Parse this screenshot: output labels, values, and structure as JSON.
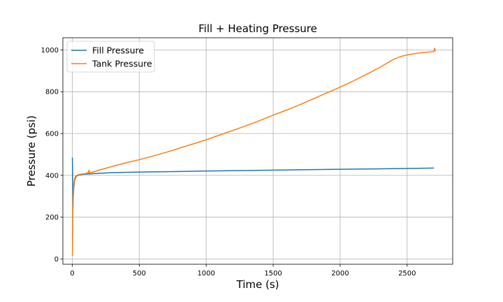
{
  "chart_data": {
    "type": "line",
    "title": "Fill + Heating Pressure",
    "xlabel": "Time (s)",
    "ylabel": "Pressure (psi)",
    "xlim": [
      -70,
      2840
    ],
    "ylim": [
      -25,
      1058
    ],
    "xticks": [
      0,
      500,
      1000,
      1500,
      2000,
      2500
    ],
    "yticks": [
      0,
      200,
      400,
      600,
      800,
      1000
    ],
    "grid": true,
    "legend_position": "top-left",
    "series": [
      {
        "name": "Fill Pressure",
        "color": "#1f77b4",
        "points": [
          [
            1,
            485
          ],
          [
            3,
            380
          ],
          [
            5,
            240
          ],
          [
            8,
            300
          ],
          [
            12,
            345
          ],
          [
            18,
            375
          ],
          [
            25,
            390
          ],
          [
            35,
            398
          ],
          [
            50,
            402
          ],
          [
            70,
            404
          ],
          [
            100,
            406
          ],
          [
            150,
            408
          ],
          [
            200,
            410
          ],
          [
            300,
            413
          ],
          [
            500,
            416
          ],
          [
            750,
            418
          ],
          [
            1000,
            421
          ],
          [
            1250,
            423
          ],
          [
            1500,
            425
          ],
          [
            1750,
            427
          ],
          [
            2000,
            429
          ],
          [
            2250,
            431
          ],
          [
            2500,
            433
          ],
          [
            2700,
            435
          ]
        ]
      },
      {
        "name": "Tank Pressure",
        "color": "#ff7f0e",
        "points": [
          [
            1,
            15
          ],
          [
            3,
            100
          ],
          [
            5,
            250
          ],
          [
            8,
            320
          ],
          [
            12,
            360
          ],
          [
            18,
            385
          ],
          [
            25,
            395
          ],
          [
            35,
            400
          ],
          [
            50,
            404
          ],
          [
            70,
            406
          ],
          [
            100,
            409
          ],
          [
            120,
            412
          ],
          [
            125,
            425
          ],
          [
            130,
            412
          ],
          [
            150,
            415
          ],
          [
            200,
            425
          ],
          [
            300,
            443
          ],
          [
            400,
            460
          ],
          [
            500,
            475
          ],
          [
            600,
            492
          ],
          [
            700,
            510
          ],
          [
            800,
            530
          ],
          [
            900,
            550
          ],
          [
            1000,
            570
          ],
          [
            1100,
            593
          ],
          [
            1200,
            615
          ],
          [
            1300,
            638
          ],
          [
            1400,
            662
          ],
          [
            1500,
            688
          ],
          [
            1600,
            712
          ],
          [
            1700,
            738
          ],
          [
            1800,
            766
          ],
          [
            1900,
            794
          ],
          [
            2000,
            822
          ],
          [
            2100,
            852
          ],
          [
            2200,
            884
          ],
          [
            2300,
            918
          ],
          [
            2400,
            955
          ],
          [
            2450,
            968
          ],
          [
            2500,
            976
          ],
          [
            2600,
            986
          ],
          [
            2700,
            992
          ],
          [
            2705,
            1008
          ],
          [
            2710,
            993
          ]
        ]
      }
    ]
  }
}
